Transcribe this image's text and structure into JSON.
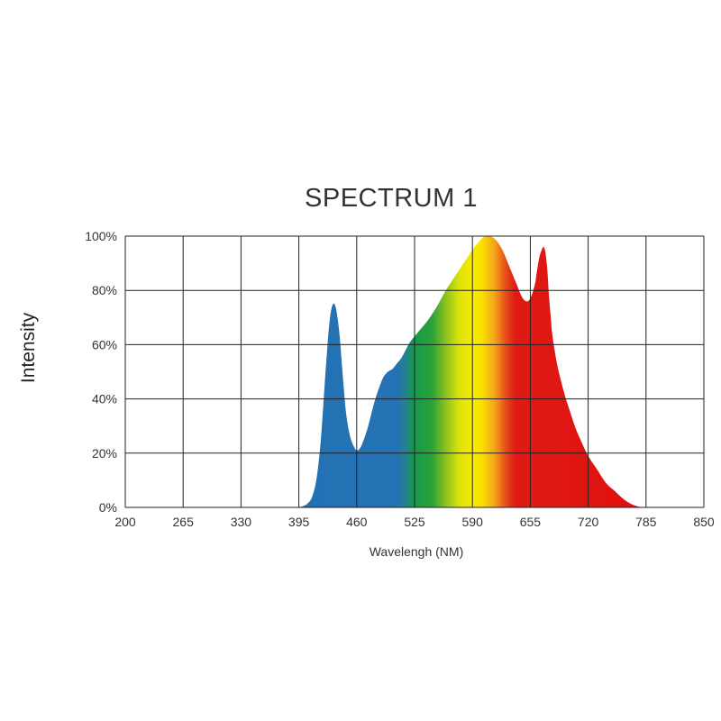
{
  "chart_data": {
    "type": "area",
    "title": "SPECTRUM 1",
    "xlabel": "Wavelengh (NM)",
    "ylabel": "Intensity",
    "xlim": [
      200,
      850
    ],
    "ylim": [
      0,
      100
    ],
    "x_ticks": [
      200,
      265,
      330,
      395,
      460,
      525,
      590,
      655,
      720,
      785,
      850
    ],
    "y_ticks": [
      0,
      20,
      40,
      60,
      80,
      100
    ],
    "y_tick_labels": [
      "0%",
      "20%",
      "40%",
      "60%",
      "80%",
      "100%"
    ],
    "grid": true,
    "legend": "none",
    "fill": "visible-spectrum gradient (blue to red)",
    "series": [
      {
        "x": [
          395,
          400,
          405,
          410,
          415,
          420,
          425,
          430,
          435,
          440,
          444,
          448,
          452,
          456,
          460,
          464,
          468,
          472,
          476,
          480,
          485,
          490,
          495,
          500,
          505,
          510,
          515,
          520,
          530,
          540,
          550,
          560,
          570,
          580,
          590,
          595,
          600,
          605,
          610,
          615,
          620,
          625,
          630,
          635,
          640,
          645,
          650,
          655,
          660,
          662,
          665,
          668,
          670,
          672,
          674,
          676,
          678,
          680,
          685,
          690,
          695,
          700,
          705,
          710,
          720,
          730,
          740,
          750,
          760,
          770,
          780
        ],
        "y": [
          0,
          0.5,
          1.5,
          4,
          11,
          26,
          50,
          70,
          75,
          66,
          50,
          35,
          27,
          23,
          21,
          22,
          25,
          29,
          34,
          39,
          44,
          48,
          50,
          51,
          53,
          55,
          58,
          61,
          65,
          69,
          74,
          80,
          85,
          90,
          95,
          97,
          99,
          100,
          100,
          99,
          97,
          94,
          90,
          86,
          82,
          78,
          76,
          77,
          82,
          86,
          92,
          95,
          96,
          94,
          88,
          78,
          70,
          63,
          53,
          46,
          40,
          35,
          30,
          26,
          19,
          14,
          9,
          6,
          3,
          1,
          0
        ]
      }
    ]
  }
}
